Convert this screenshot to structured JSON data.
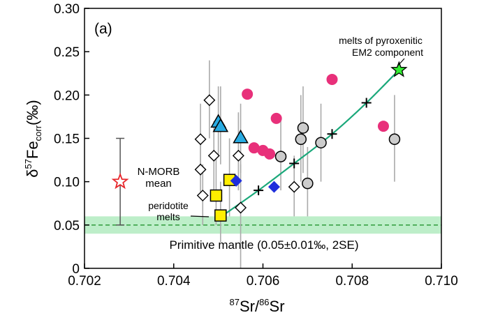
{
  "chart_data": {
    "type": "scatter",
    "panel_label": "(a)",
    "xlabel": {
      "sup1": "87",
      "mid": "Sr/",
      "sup2": "86",
      "end": "Sr"
    },
    "ylabel": {
      "main": "δ",
      "sup": "57",
      "fe": "Fe",
      "sub": "corr",
      "unit": "(‰)"
    },
    "xlim": [
      0.702,
      0.71
    ],
    "ylim": [
      0,
      0.3
    ],
    "xticks": [
      "0.702",
      "0.704",
      "0.706",
      "0.708",
      "0.710"
    ],
    "yticks": [
      "0",
      "0.05",
      "0.10",
      "0.15",
      "0.20",
      "0.25",
      "0.30"
    ],
    "colors": {
      "pink": "#e8307a",
      "cyan": "#29abe2",
      "yellow": "#ffee00",
      "blue": "#1f2fdc",
      "grey": "#cccccc",
      "green_star": "#33ee33",
      "curve": "#1aa87a",
      "band": "#bdeec9",
      "dashed": "#2e9a3a",
      "morb": "#e8262b",
      "errorbar": "#aaaaaa"
    },
    "primitive_mantle": {
      "value": 0.05,
      "band": [
        0.04,
        0.06
      ],
      "label": "Primitive mantle (0.05±0.01‰, 2SE)"
    },
    "n_morb": {
      "x": 0.7028,
      "y": 0.1,
      "err": [
        0.05,
        0.15
      ],
      "label_line1": "N-MORB",
      "label_line2": "mean"
    },
    "annotations": {
      "pyroxenite_line1": "melts of pyroxenitic",
      "pyroxenite_line2": "EM2 component",
      "peridotite_line1": "peridotite",
      "peridotite_line2": "melts"
    },
    "mixing_curve": [
      [
        0.7051,
        0.061
      ],
      [
        0.7059,
        0.09
      ],
      [
        0.7067,
        0.121
      ],
      [
        0.70755,
        0.155
      ],
      [
        0.70832,
        0.191
      ],
      [
        0.70905,
        0.229
      ]
    ],
    "series": [
      {
        "name": "pink-circles",
        "marker": "circle",
        "color": "pink",
        "points": [
          {
            "x": 0.70565,
            "y": 0.201
          },
          {
            "x": 0.70755,
            "y": 0.218
          },
          {
            "x": 0.7063,
            "y": 0.173
          },
          {
            "x": 0.7087,
            "y": 0.164
          },
          {
            "x": 0.7058,
            "y": 0.139
          },
          {
            "x": 0.706,
            "y": 0.136
          },
          {
            "x": 0.70615,
            "y": 0.132
          }
        ]
      },
      {
        "name": "grey-circles",
        "marker": "circle",
        "color": "grey",
        "points": [
          {
            "x": 0.7064,
            "y": 0.129,
            "err": [
              0.09,
              0.17
            ]
          },
          {
            "x": 0.7069,
            "y": 0.162,
            "err": [
              0.11,
              0.21
            ]
          },
          {
            "x": 0.70685,
            "y": 0.149,
            "err": [
              0.1,
              0.2
            ]
          },
          {
            "x": 0.7073,
            "y": 0.145,
            "err": [
              0.1,
              0.19
            ]
          },
          {
            "x": 0.70895,
            "y": 0.149,
            "err": [
              0.1,
              0.2
            ]
          },
          {
            "x": 0.707,
            "y": 0.098,
            "err": [
              0.06,
              0.14
            ]
          }
        ]
      },
      {
        "name": "open-diamonds",
        "marker": "diamond",
        "color": "white",
        "points": [
          {
            "x": 0.7048,
            "y": 0.194,
            "err": [
              0.15,
              0.24
            ]
          },
          {
            "x": 0.7046,
            "y": 0.149,
            "err": [
              0.11,
              0.19
            ]
          },
          {
            "x": 0.7049,
            "y": 0.13,
            "err": [
              0.09,
              0.17
            ]
          },
          {
            "x": 0.70545,
            "y": 0.13,
            "err": [
              0.09,
              0.18
            ]
          },
          {
            "x": 0.7046,
            "y": 0.114,
            "err": [
              0.08,
              0.15
            ]
          },
          {
            "x": 0.70465,
            "y": 0.084,
            "err": [
              0.05,
              0.12
            ]
          },
          {
            "x": 0.7067,
            "y": 0.094,
            "err": [
              0.06,
              0.13
            ]
          },
          {
            "x": 0.7055,
            "y": 0.07,
            "err": [
              0.0,
              0.12
            ]
          }
        ]
      },
      {
        "name": "cyan-triangles",
        "marker": "triangle",
        "color": "cyan",
        "points": [
          {
            "x": 0.705,
            "y": 0.169,
            "err": [
              0.13,
              0.21
            ]
          },
          {
            "x": 0.70505,
            "y": 0.164,
            "err": [
              0.12,
              0.21
            ]
          },
          {
            "x": 0.7055,
            "y": 0.151,
            "err": [
              0.11,
              0.19
            ]
          }
        ]
      },
      {
        "name": "yellow-squares",
        "marker": "square",
        "color": "yellow",
        "points": [
          {
            "x": 0.70525,
            "y": 0.102,
            "err": [
              0.06,
              0.15
            ]
          },
          {
            "x": 0.70495,
            "y": 0.084,
            "err": [
              0.05,
              0.13
            ]
          },
          {
            "x": 0.70505,
            "y": 0.061,
            "err": [
              0.03,
              0.1
            ]
          }
        ]
      },
      {
        "name": "blue-diamonds",
        "marker": "diamond",
        "color": "blue",
        "points": [
          {
            "x": 0.7054,
            "y": 0.101
          },
          {
            "x": 0.70625,
            "y": 0.094
          }
        ]
      },
      {
        "name": "pyroxenite-star",
        "marker": "star",
        "color": "green_star",
        "points": [
          {
            "x": 0.70905,
            "y": 0.229
          }
        ]
      }
    ]
  }
}
